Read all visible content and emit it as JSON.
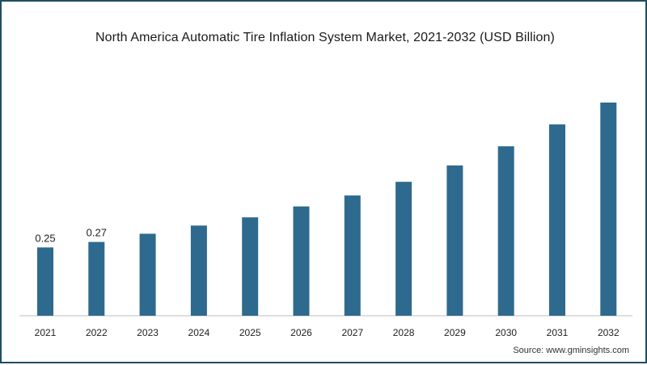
{
  "chart_data": {
    "type": "bar",
    "title": "North America Automatic Tire Inflation System Market, 2021-2032 (USD Billion)",
    "xlabel": "",
    "ylabel": "",
    "categories": [
      "2021",
      "2022",
      "2023",
      "2024",
      "2025",
      "2026",
      "2027",
      "2028",
      "2029",
      "2030",
      "2031",
      "2032"
    ],
    "values": [
      0.25,
      0.27,
      0.3,
      0.33,
      0.36,
      0.4,
      0.44,
      0.49,
      0.55,
      0.62,
      0.7,
      0.78
    ],
    "data_labels": [
      "0.25",
      "0.27",
      "",
      "",
      "",
      "",
      "",
      "",
      "",
      "",
      "",
      ""
    ],
    "ylim": [
      0,
      0.78
    ],
    "grid": false,
    "legend": "none",
    "bar_color": "#2e6a8e"
  },
  "source": "Source: www.gminsights.com",
  "colors": {
    "border": "#1f4e5f",
    "axis": "#bfbfbf"
  }
}
